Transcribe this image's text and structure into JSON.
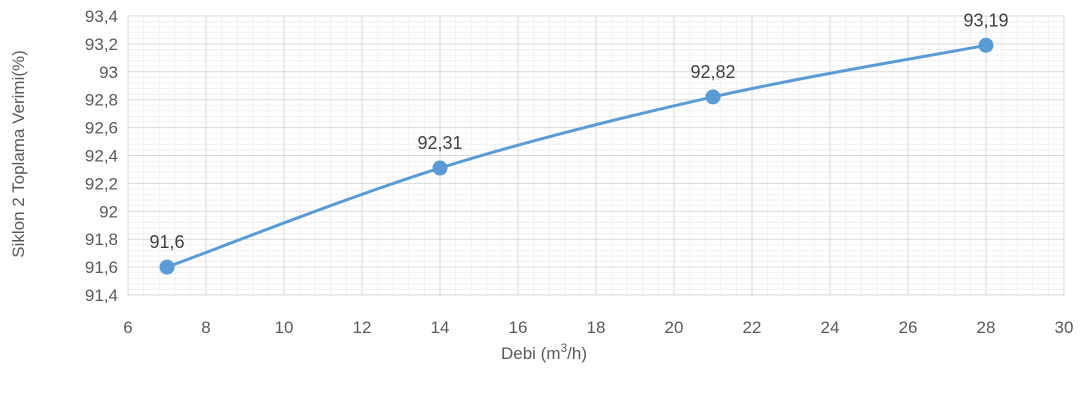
{
  "chart_data": {
    "type": "line",
    "xlabel": "Debi (m",
    "xlabel_sup": "3",
    "xlabel_tail": "/h)",
    "ylabel": "Siklon 2 Toplama Verimi(%)",
    "xlim": [
      6,
      30
    ],
    "ylim": [
      91.4,
      93.4
    ],
    "x_ticks": [
      "6",
      "8",
      "10",
      "12",
      "14",
      "16",
      "18",
      "20",
      "22",
      "24",
      "26",
      "28",
      "30"
    ],
    "y_ticks": [
      "91,4",
      "91,6",
      "91,8",
      "92",
      "92,2",
      "92,4",
      "92,6",
      "92,8",
      "93",
      "93,2",
      "93,4"
    ],
    "grid": true,
    "series": [
      {
        "x": [
          7,
          14,
          21,
          28
        ],
        "values": [
          91.6,
          92.31,
          92.82,
          93.19
        ],
        "labels": [
          "91,6",
          "92,31",
          "92,82",
          "93,19"
        ],
        "color": "#5b9bd5"
      }
    ]
  }
}
